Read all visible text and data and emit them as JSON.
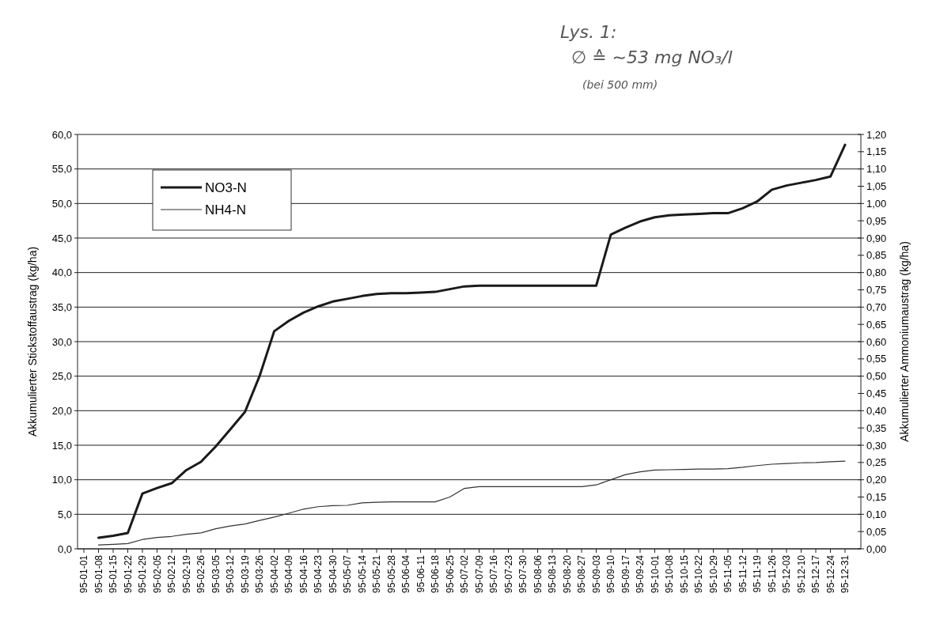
{
  "chart_data": {
    "type": "line",
    "ylabel": "Akkumulierter Stickstoffaustrag (kg/ha)",
    "y2label": "Akkumulierter Ammoniumaustrag (kg/ha)",
    "annotations": [
      "Lys. 1:",
      "∅ ≙ ∼53 mg NO₃/l",
      "(bei 500 mm)"
    ],
    "categories": [
      "95-01-01",
      "95-01-08",
      "95-01-15",
      "95-01-22",
      "95-01-29",
      "95-02-05",
      "95-02-12",
      "95-02-19",
      "95-02-26",
      "95-03-05",
      "95-03-12",
      "95-03-19",
      "95-03-26",
      "95-04-02",
      "95-04-09",
      "95-04-16",
      "95-04-23",
      "95-04-30",
      "95-05-07",
      "95-05-14",
      "95-05-21",
      "95-05-28",
      "95-06-04",
      "95-06-11",
      "95-06-18",
      "95-06-25",
      "95-07-02",
      "95-07-09",
      "95-07-16",
      "95-07-23",
      "95-07-30",
      "95-08-06",
      "95-08-13",
      "95-08-20",
      "95-08-27",
      "95-09-03",
      "95-09-10",
      "95-09-17",
      "95-09-24",
      "95-10-01",
      "95-10-08",
      "95-10-15",
      "95-10-22",
      "95-10-29",
      "95-11-05",
      "95-11-12",
      "95-11-19",
      "95-11-26",
      "95-12-03",
      "95-12-10",
      "95-12-17",
      "95-12-24",
      "95-12-31"
    ],
    "series": [
      {
        "name": "NO3-N",
        "color": "#1a1a1a",
        "values": [
          null,
          1.6,
          1.9,
          2.3,
          8.0,
          8.8,
          9.5,
          11.4,
          12.6,
          14.8,
          17.3,
          19.8,
          25.0,
          31.5,
          33.0,
          34.2,
          35.1,
          35.8,
          36.2,
          36.6,
          36.9,
          37.0,
          37.0,
          37.1,
          37.2,
          37.6,
          38.0,
          38.1,
          38.1,
          38.1,
          38.1,
          38.1,
          38.1,
          38.1,
          38.1,
          38.1,
          45.5,
          46.5,
          47.4,
          48.0,
          48.3,
          48.4,
          48.5,
          48.6,
          48.6,
          49.3,
          50.3,
          52.0,
          52.6,
          53.0,
          53.4,
          53.9,
          58.5
        ]
      },
      {
        "name": "NH4-N",
        "color": "#333333",
        "axis": "y2",
        "values": [
          null,
          0.011,
          0.013,
          0.015,
          0.027,
          0.033,
          0.036,
          0.042,
          0.046,
          0.058,
          0.066,
          0.072,
          0.082,
          0.092,
          0.103,
          0.115,
          0.122,
          0.125,
          0.126,
          0.133,
          0.135,
          0.136,
          0.136,
          0.136,
          0.136,
          0.15,
          0.175,
          0.18,
          0.18,
          0.18,
          0.18,
          0.18,
          0.18,
          0.18,
          0.18,
          0.185,
          0.2,
          0.215,
          0.223,
          0.228,
          0.229,
          0.23,
          0.231,
          0.231,
          0.232,
          0.236,
          0.241,
          0.245,
          0.247,
          0.249,
          0.25,
          0.252,
          0.254
        ]
      }
    ],
    "ylim": [
      0,
      60
    ],
    "yticks": [
      {
        "value": 0,
        "label": "0,0"
      },
      {
        "value": 5,
        "label": "5,0"
      },
      {
        "value": 10,
        "label": "10,0"
      },
      {
        "value": 15,
        "label": "15,0"
      },
      {
        "value": 20,
        "label": "20,0"
      },
      {
        "value": 25,
        "label": "25,0"
      },
      {
        "value": 30,
        "label": "30,0"
      },
      {
        "value": 35,
        "label": "35,0"
      },
      {
        "value": 40,
        "label": "40,0"
      },
      {
        "value": 45,
        "label": "45,0"
      },
      {
        "value": 50,
        "label": "50,0"
      },
      {
        "value": 55,
        "label": "55,0"
      },
      {
        "value": 60,
        "label": "60,0"
      }
    ],
    "y2lim": [
      0,
      1.2
    ],
    "y2ticks": [
      {
        "value": 0,
        "label": "0,00"
      },
      {
        "value": 0.05,
        "label": "0,05"
      },
      {
        "value": 0.1,
        "label": "0,10"
      },
      {
        "value": 0.15,
        "label": "0,15"
      },
      {
        "value": 0.2,
        "label": "0,20"
      },
      {
        "value": 0.25,
        "label": "0,25"
      },
      {
        "value": 0.3,
        "label": "0,30"
      },
      {
        "value": 0.35,
        "label": "0,35"
      },
      {
        "value": 0.4,
        "label": "0,40"
      },
      {
        "value": 0.45,
        "label": "0,45"
      },
      {
        "value": 0.5,
        "label": "0,50"
      },
      {
        "value": 0.55,
        "label": "0,55"
      },
      {
        "value": 0.6,
        "label": "0,60"
      },
      {
        "value": 0.65,
        "label": "0,65"
      },
      {
        "value": 0.7,
        "label": "0,70"
      },
      {
        "value": 0.75,
        "label": "0,75"
      },
      {
        "value": 0.8,
        "label": "0,80"
      },
      {
        "value": 0.85,
        "label": "0,85"
      },
      {
        "value": 0.9,
        "label": "0,90"
      },
      {
        "value": 0.95,
        "label": "0,95"
      },
      {
        "value": 1.0,
        "label": "1,00"
      },
      {
        "value": 1.05,
        "label": "1,05"
      },
      {
        "value": 1.1,
        "label": "1,10"
      },
      {
        "value": 1.15,
        "label": "1,15"
      },
      {
        "value": 1.2,
        "label": "1,20"
      }
    ],
    "grid": "y",
    "legend": "top left",
    "marker": "none",
    "line_style": "solid"
  }
}
